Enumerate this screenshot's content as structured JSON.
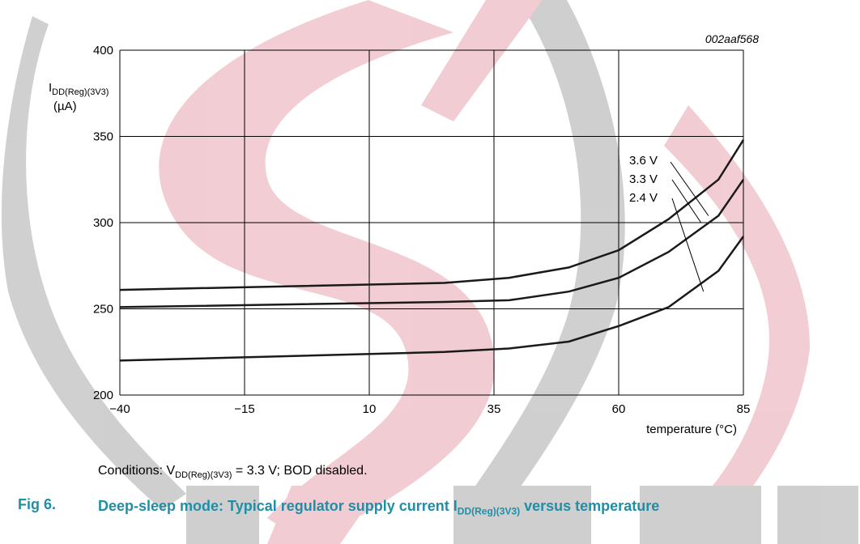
{
  "chart_data": {
    "type": "line",
    "code": "002aaf568",
    "ylabel_main": "I",
    "ylabel_sub": "DD(Reg)(3V3)",
    "ylabel_unit": "(µA)",
    "xlabel": "temperature (°C)",
    "x_ticks": [
      "−40",
      "−15",
      "10",
      "35",
      "60",
      "85"
    ],
    "x_tick_values": [
      -40,
      -15,
      10,
      35,
      60,
      85
    ],
    "y_ticks": [
      "200",
      "250",
      "300",
      "350",
      "400"
    ],
    "y_tick_values": [
      200,
      250,
      300,
      350,
      400
    ],
    "xlim": [
      -40,
      85
    ],
    "ylim": [
      200,
      400
    ],
    "grid": true,
    "series": [
      {
        "name": "3.6 V",
        "x": [
          -40,
          25,
          38,
          50,
          60,
          70,
          80,
          85
        ],
        "y": [
          261,
          265,
          268,
          274,
          284,
          302,
          325,
          348
        ]
      },
      {
        "name": "3.3 V",
        "x": [
          -40,
          25,
          38,
          50,
          60,
          70,
          80,
          85
        ],
        "y": [
          251,
          254,
          255,
          260,
          268,
          283,
          304,
          325
        ]
      },
      {
        "name": "2.4 V",
        "x": [
          -40,
          25,
          38,
          50,
          60,
          70,
          80,
          85
        ],
        "y": [
          220,
          225,
          227,
          231,
          240,
          251,
          272,
          292
        ]
      }
    ]
  },
  "conditions": {
    "prefix": "Conditions: V",
    "sub": "DD(Reg)(3V3)",
    "suffix": " = 3.3 V; BOD disabled."
  },
  "figure": {
    "number": "Fig 6.",
    "caption_pre": "Deep-sleep mode: Typical regulator supply current I",
    "caption_sub": "DD(Reg)(3V3)",
    "caption_post": " versus temperature"
  },
  "colors": {
    "accent": "#1f8fa8",
    "watermark_red": "#e7a4af",
    "watermark_gray": "#a9a9a9",
    "line": "#1a1a1a"
  }
}
